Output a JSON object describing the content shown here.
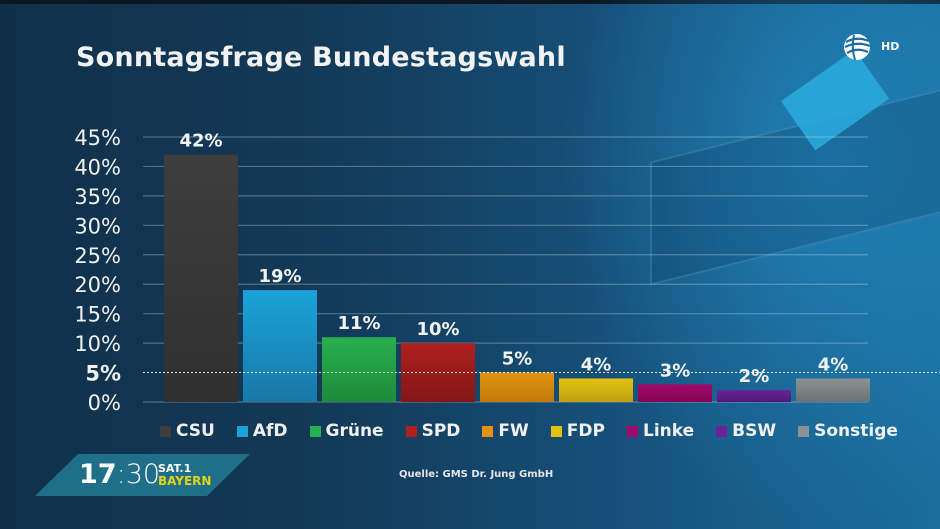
{
  "header": {
    "title": "Sonntagsfrage Bundestagswahl",
    "channel_badge": "HD"
  },
  "chart_data": {
    "type": "bar",
    "title": "Sonntagsfrage Bundestagswahl",
    "xlabel": "",
    "ylabel": "",
    "ylim": [
      0,
      45
    ],
    "yticks": [
      "0%",
      "5%",
      "10%",
      "15%",
      "20%",
      "25%",
      "30%",
      "35%",
      "40%",
      "45%"
    ],
    "ytick_values": [
      0,
      5,
      10,
      15,
      20,
      25,
      30,
      35,
      40,
      45
    ],
    "highlight_tick": 5,
    "grid": true,
    "legend_position": "bottom",
    "categories": [
      "CSU",
      "AfD",
      "Grüne",
      "SPD",
      "FW",
      "FDP",
      "Linke",
      "BSW",
      "Sonstige"
    ],
    "values": [
      42,
      19,
      11,
      10,
      5,
      4,
      3,
      2,
      4
    ],
    "value_labels": [
      "42%",
      "19%",
      "11%",
      "10%",
      "5%",
      "4%",
      "3%",
      "2%",
      "4%"
    ],
    "colors": [
      "#3d3d3d",
      "#1aa3d8",
      "#27b04e",
      "#b0201f",
      "#e3940f",
      "#e2c211",
      "#a3086b",
      "#6a2394",
      "#8a9294"
    ],
    "colors_dark": [
      "#303030",
      "#1a78a8",
      "#1f8a3c",
      "#821716",
      "#c07a0c",
      "#c0a010",
      "#820558",
      "#4e1a78",
      "#6a7274"
    ]
  },
  "footer": {
    "source": "Quelle: GMS Dr. Jung GmbH",
    "time_hours": "17",
    "time_sep": ":",
    "time_minutes": "30",
    "brand_line1": "SAT.1",
    "brand_line2": "BAYERN"
  }
}
